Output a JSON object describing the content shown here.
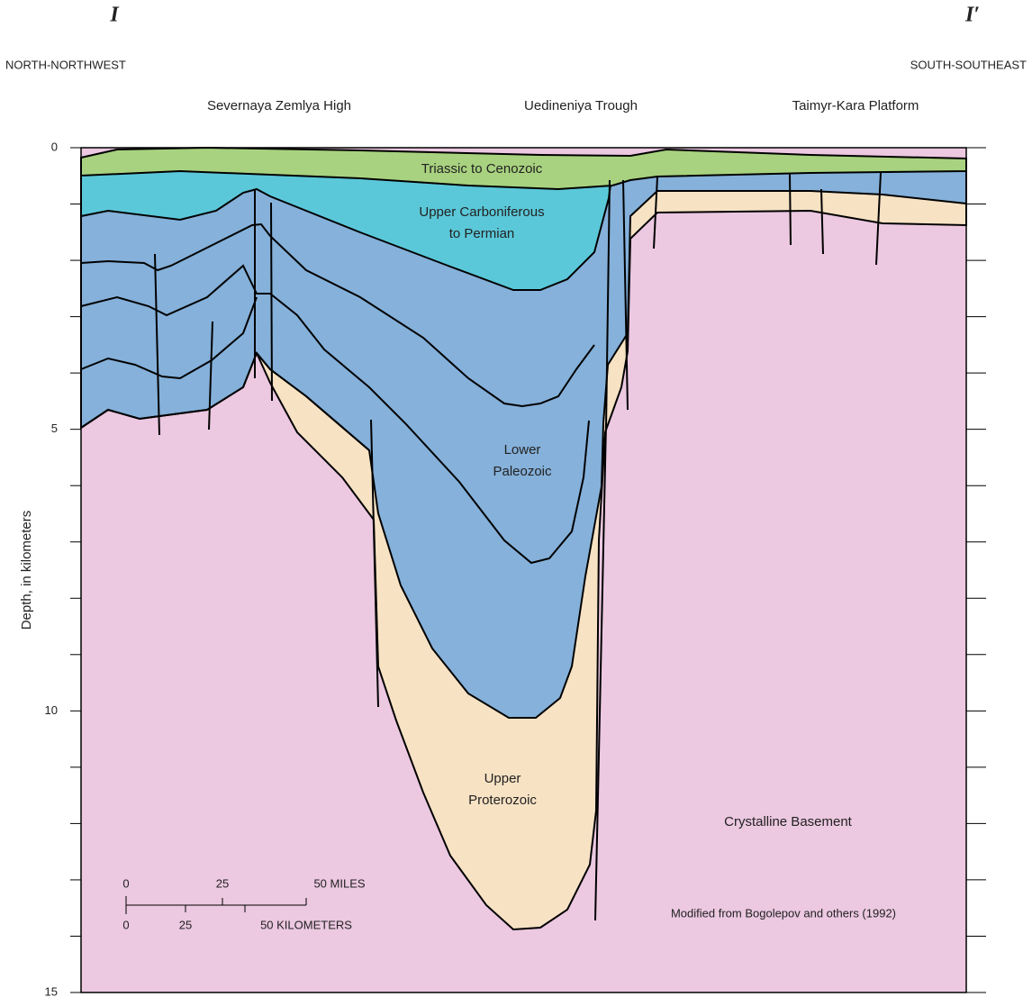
{
  "section": {
    "start": "I",
    "end": "I′"
  },
  "directions": {
    "left": "NORTH-NORTHWEST",
    "right": "SOUTH-SOUTHEAST"
  },
  "regions": [
    "Severnaya Zemlya High",
    "Uedineniya Trough",
    "Taimyr-Kara Platform"
  ],
  "depth_axis": {
    "label": "Depth, in kilometers",
    "ylim": [
      0,
      15
    ],
    "ticks": [
      0,
      5,
      10,
      15
    ]
  },
  "units": [
    {
      "lines": [
        "Triassic to Cenozoic"
      ]
    },
    {
      "lines": [
        "Upper Carboniferous",
        "to Permian"
      ]
    },
    {
      "lines": [
        "Lower",
        "Paleozoic"
      ]
    },
    {
      "lines": [
        "Upper",
        "Proterozoic"
      ]
    },
    {
      "lines": [
        "Crystalline Basement"
      ]
    }
  ],
  "scale_bar": {
    "miles": [
      "0",
      "25",
      "50 MILES"
    ],
    "kilometers": [
      "0",
      "25",
      "50 KILOMETERS"
    ]
  },
  "source": "Modified from Bogolepov and others (1992)"
}
